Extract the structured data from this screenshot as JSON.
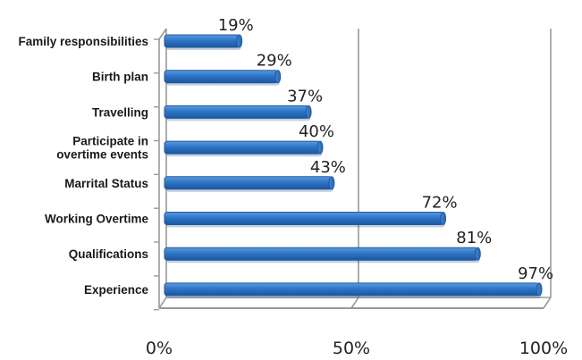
{
  "chart_data": {
    "type": "bar",
    "orientation": "horizontal",
    "categories": [
      "Family responsibilities",
      "Birth plan",
      "Travelling",
      "Participate in overtime events",
      "Marrital Status",
      "Working Overtime",
      "Qualifications",
      "Experience"
    ],
    "category_lines": [
      [
        "Family responsibilities"
      ],
      [
        "Birth plan"
      ],
      [
        "Travelling"
      ],
      [
        "Participate in",
        "overtime events"
      ],
      [
        "Marrital Status"
      ],
      [
        "Working Overtime"
      ],
      [
        "Qualifications"
      ],
      [
        "Experience"
      ]
    ],
    "values": [
      19,
      29,
      37,
      40,
      43,
      72,
      81,
      97
    ],
    "value_labels": [
      "19%",
      "29%",
      "37%",
      "40%",
      "43%",
      "72%",
      "81%",
      "97%"
    ],
    "xlim": [
      0,
      100
    ],
    "x_ticks": [
      0,
      50,
      100
    ],
    "x_tick_labels": [
      "0%",
      "50%",
      "100%"
    ],
    "title": "",
    "xlabel": "",
    "ylabel": "",
    "grid": "vertical",
    "style": "3d",
    "bar_color": "#2e75c6",
    "bar_edge_color": "#1f5aa0"
  }
}
